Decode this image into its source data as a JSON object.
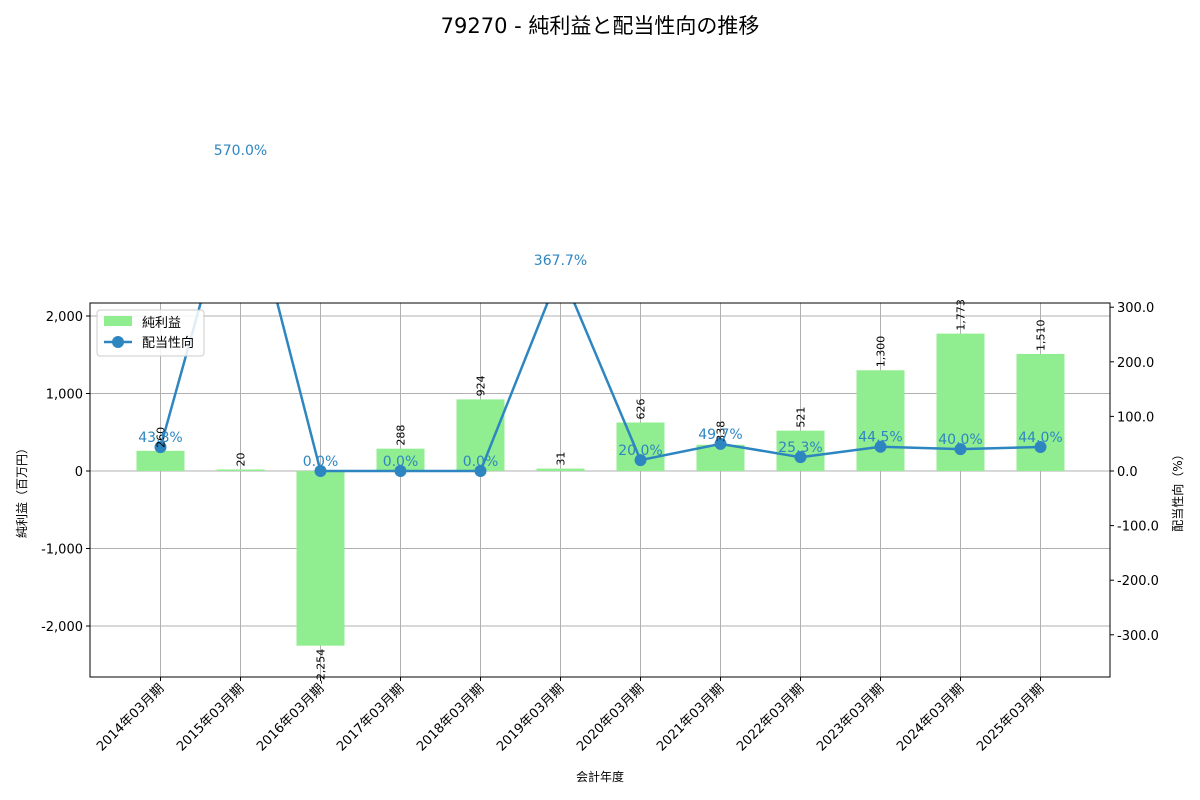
{
  "title": "79270 - 純利益と配当性向の推移",
  "chart_data": {
    "type": "bar+line",
    "title": "79270 - 純利益と配当性向の推移",
    "xlabel": "会計年度",
    "ylabel": "純利益（百万円）",
    "y2label": "配当性向（%）",
    "categories": [
      "2014年03月期",
      "2015年03月期",
      "2016年03月期",
      "2017年03月期",
      "2018年03月期",
      "2019年03月期",
      "2020年03月期",
      "2021年03月期",
      "2022年03月期",
      "2023年03月期",
      "2024年03月期",
      "2025年03月期"
    ],
    "series": [
      {
        "name": "純利益",
        "type": "bar",
        "axis": "left",
        "color": "#90ee90",
        "values": [
          260,
          20,
          -2254,
          288,
          924,
          31,
          626,
          338,
          521,
          1300,
          1773,
          1510
        ],
        "labels": [
          "260",
          "20",
          "-2,254",
          "288",
          "924",
          "31",
          "626",
          "338",
          "521",
          "1,300",
          "1,773",
          "1,510"
        ]
      },
      {
        "name": "配当性向",
        "type": "line",
        "axis": "right",
        "color": "#2e86c1",
        "values": [
          43.8,
          570.0,
          0.0,
          0.0,
          0.0,
          367.7,
          20.0,
          49.7,
          25.3,
          44.5,
          40.0,
          44.0
        ],
        "labels": [
          "43.8%",
          "570.0%",
          "0.0%",
          "0.0%",
          "0.0%",
          "367.7%",
          "20.0%",
          "49.7%",
          "25.3%",
          "44.5%",
          "40.0%",
          "44.0%"
        ]
      }
    ],
    "ylim": [
      -2650,
      2200
    ],
    "y2lim": [
      -382,
      310
    ],
    "yticks": [
      -2000,
      -1000,
      0,
      1000,
      2000
    ],
    "ytick_labels": [
      "-2,000",
      "-1,000",
      "0",
      "1,000",
      "2,000"
    ],
    "y2ticks": [
      -300,
      -200,
      -100,
      0,
      100,
      200,
      300
    ],
    "y2tick_labels": [
      "-300.0",
      "-200.0",
      "-100.0",
      "0.0",
      "100.0",
      "200.0",
      "300.0"
    ],
    "grid": true,
    "legend_position": "upper left",
    "legend": [
      "純利益",
      "配当性向"
    ]
  }
}
